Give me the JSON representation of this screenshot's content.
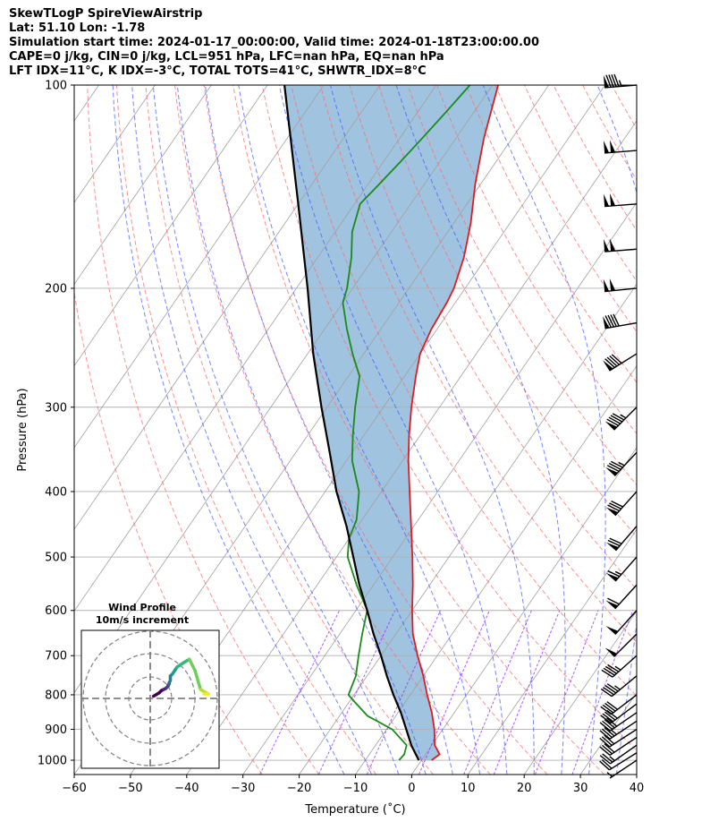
{
  "header": {
    "line1": "SkewTLogP SpireViewAirstrip",
    "line2": "Lat: 51.10   Lon: -1.78",
    "line3": "Simulation start time: 2024-01-17_00:00:00, Valid time: 2024-01-18T23:00:00.00",
    "line4": "CAPE=0 j/kg, CIN=0 j/kg, LCL=951 hPa, LFC=nan hPa, EQ=nan hPa",
    "line5": "LFT IDX=11°C, K IDX=-3°C, TOTAL TOTS=41°C, SHWTR_IDX=8°C"
  },
  "colors": {
    "temperature": "#e31a1c",
    "dewpoint": "#1a8a1a",
    "parcel": "#000000",
    "shade": "#8fb9d9",
    "dry_adiabat": "#ff6b6b",
    "moist_adiabat": "#4a5cff",
    "mixing_ratio": "#9b30ff",
    "isotherm": "#a0a0a0"
  },
  "chart_data": {
    "type": "line",
    "title": "",
    "xlabel": "Temperature (˚C)",
    "ylabel": "Pressure (hPa)",
    "xlim": [
      -60,
      40
    ],
    "ylim": [
      1050,
      100
    ],
    "y_scale": "log",
    "skew": true,
    "grid": true,
    "xticks": [
      "−60",
      "−50",
      "−40",
      "−30",
      "−20",
      "−10",
      "0",
      "10",
      "20",
      "30",
      "40"
    ],
    "yticks": [
      "100",
      "200",
      "300",
      "400",
      "500",
      "600",
      "700",
      "800",
      "900",
      "1000"
    ],
    "series": [
      {
        "role": "temperature",
        "points": [
          [
            1000,
            1.8
          ],
          [
            980,
            2.5
          ],
          [
            950,
            0.5
          ],
          [
            900,
            -1.5
          ],
          [
            850,
            -4
          ],
          [
            800,
            -7
          ],
          [
            750,
            -10
          ],
          [
            700,
            -13.5
          ],
          [
            650,
            -17
          ],
          [
            600,
            -20
          ],
          [
            550,
            -23
          ],
          [
            500,
            -26.5
          ],
          [
            450,
            -30.5
          ],
          [
            400,
            -35
          ],
          [
            360,
            -39
          ],
          [
            330,
            -42
          ],
          [
            300,
            -45
          ],
          [
            270,
            -48
          ],
          [
            250,
            -50
          ],
          [
            230,
            -51
          ],
          [
            210,
            -51.5
          ],
          [
            200,
            -52
          ],
          [
            180,
            -54
          ],
          [
            160,
            -57
          ],
          [
            140,
            -61
          ],
          [
            120,
            -65
          ],
          [
            100,
            -69
          ]
        ]
      },
      {
        "role": "dewpoint",
        "points": [
          [
            1000,
            -4
          ],
          [
            980,
            -3.8
          ],
          [
            950,
            -4.5
          ],
          [
            900,
            -9
          ],
          [
            860,
            -15
          ],
          [
            820,
            -19
          ],
          [
            800,
            -21
          ],
          [
            750,
            -22
          ],
          [
            700,
            -24
          ],
          [
            650,
            -26
          ],
          [
            600,
            -28
          ],
          [
            550,
            -33
          ],
          [
            500,
            -38
          ],
          [
            470,
            -40
          ],
          [
            440,
            -41
          ],
          [
            400,
            -44
          ],
          [
            360,
            -49
          ],
          [
            330,
            -52
          ],
          [
            300,
            -55
          ],
          [
            270,
            -58
          ],
          [
            250,
            -62
          ],
          [
            230,
            -66
          ],
          [
            210,
            -70
          ],
          [
            200,
            -71
          ],
          [
            180,
            -74
          ],
          [
            165,
            -77
          ],
          [
            150,
            -79
          ],
          [
            140,
            -78
          ],
          [
            130,
            -77
          ],
          [
            120,
            -76
          ],
          [
            110,
            -75
          ],
          [
            100,
            -74
          ]
        ]
      },
      {
        "role": "parcel",
        "points": [
          [
            1000,
            -0.5
          ],
          [
            951,
            -3.6
          ],
          [
            900,
            -6.5
          ],
          [
            850,
            -9.5
          ],
          [
            800,
            -13
          ],
          [
            750,
            -16.5
          ],
          [
            700,
            -20
          ],
          [
            650,
            -24
          ],
          [
            600,
            -28
          ],
          [
            550,
            -32.5
          ],
          [
            500,
            -37
          ],
          [
            450,
            -42
          ],
          [
            400,
            -48
          ],
          [
            350,
            -54
          ],
          [
            300,
            -61
          ],
          [
            250,
            -69
          ],
          [
            200,
            -78
          ],
          [
            150,
            -90
          ],
          [
            100,
            -107
          ]
        ]
      }
    ],
    "wind_barbs": {
      "pressures": [
        1000,
        975,
        950,
        925,
        900,
        875,
        850,
        825,
        800,
        750,
        700,
        650,
        600,
        550,
        500,
        450,
        400,
        350,
        300,
        250,
        225,
        200,
        175,
        150,
        125,
        100
      ],
      "u": [
        -3,
        -8,
        -10,
        -12,
        -14,
        -15,
        -16,
        -16,
        -17,
        -17,
        -18,
        -18,
        -18,
        -20,
        -22,
        -24,
        -27,
        -30,
        -35,
        -40,
        -45,
        -50,
        -52,
        -52,
        -50,
        -48
      ],
      "v": [
        2,
        5,
        7,
        8,
        9,
        10,
        11,
        12,
        13,
        14,
        16,
        18,
        20,
        22,
        25,
        28,
        30,
        32,
        35,
        25,
        8,
        5,
        4,
        4,
        4,
        4
      ]
    },
    "inset": {
      "title_line1": "Wind Profile",
      "title_line2": "10m/s increment"
    }
  }
}
